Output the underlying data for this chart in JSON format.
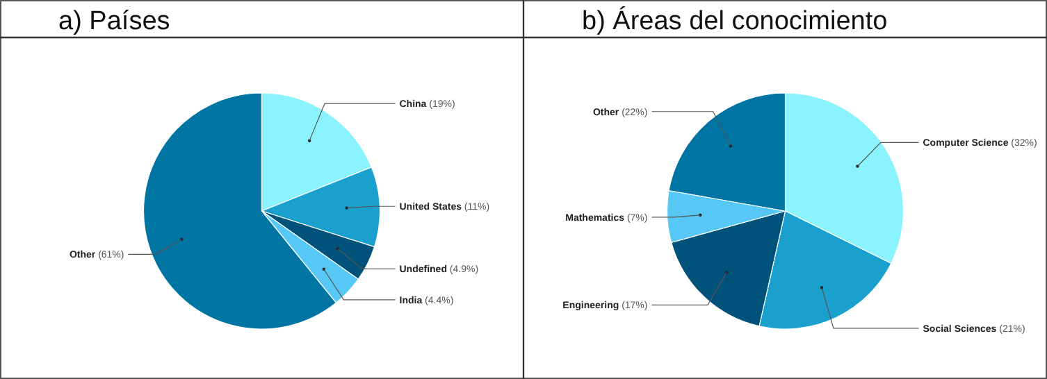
{
  "chart_data": [
    {
      "type": "pie",
      "title": "a)   Países",
      "categories": [
        "China",
        "United States",
        "Undefined",
        "India",
        "Other"
      ],
      "values": [
        19,
        11,
        4.9,
        4.4,
        61
      ],
      "colors": [
        "#8af3fe",
        "#19a0cd",
        "#00527a",
        "#57c8f5",
        "#0074a2"
      ],
      "value_labels": [
        "(19%)",
        "(11%)",
        "(4.9%)",
        "(4.4%)",
        "(61%)"
      ]
    },
    {
      "type": "pie",
      "title": "b)   Áreas del conocimiento",
      "categories": [
        "Computer Science",
        "Social Sciences",
        "Engineering",
        "Mathematics",
        "Other"
      ],
      "values": [
        32,
        21,
        17,
        7,
        22
      ],
      "colors": [
        "#8af3fe",
        "#19a0cd",
        "#00527a",
        "#57c8f5",
        "#0074a2"
      ],
      "value_labels": [
        "(32%)",
        "(21%)",
        "(17%)",
        "(7%)",
        "(22%)"
      ]
    }
  ]
}
